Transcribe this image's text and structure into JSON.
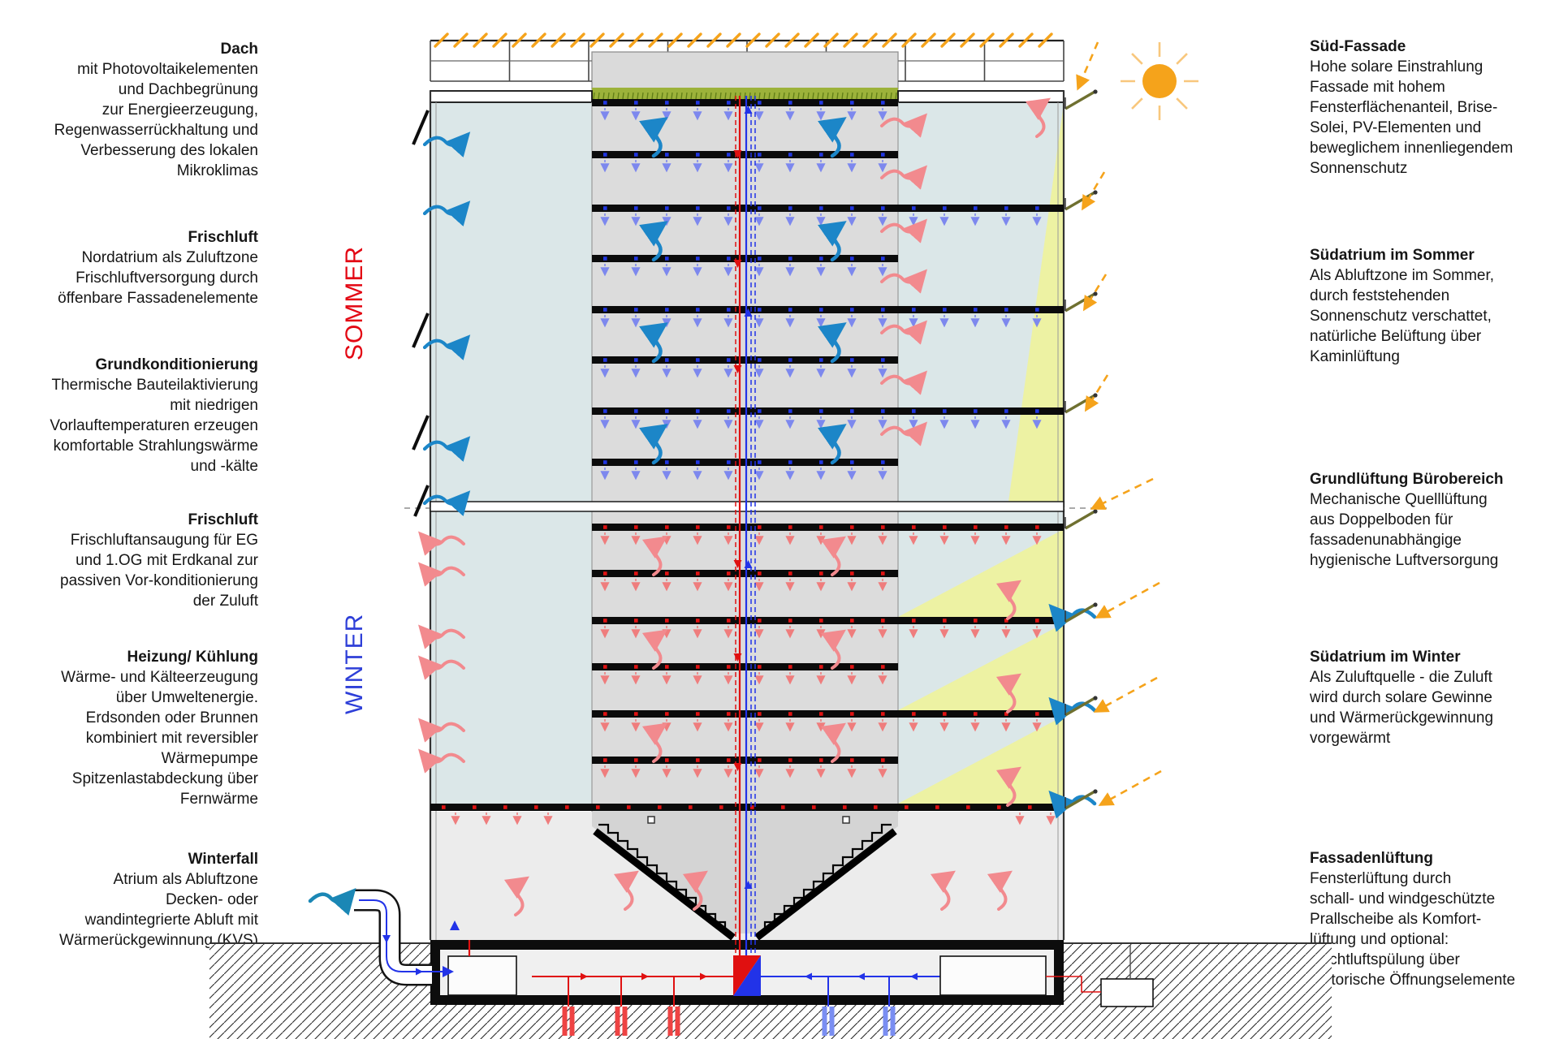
{
  "left_column": {
    "blocks": [
      {
        "title": "Dach",
        "lines": [
          "mit Photovoltaikelementen",
          "und Dachbegrünung",
          "zur Energieerzeugung,",
          "Regenwasserrückhaltung und",
          "Verbesserung des lokalen",
          "Mikroklimas"
        ]
      },
      {
        "title": "Frischluft",
        "lines": [
          "Nordatrium als Zuluftzone",
          "Frischluftversorgung durch",
          "öffenbare Fassadenelemente"
        ]
      },
      {
        "title": "Grundkonditionierung",
        "lines": [
          "Thermische Bauteilaktivierung",
          "mit niedrigen",
          "Vorlauftemperaturen erzeugen",
          "komfortable Strahlungswärme",
          "und -kälte"
        ]
      },
      {
        "title": "Frischluft",
        "lines": [
          "Frischluftansaugung für EG",
          "und 1.OG mit Erdkanal zur",
          "passiven Vor-konditionierung",
          "der Zuluft"
        ]
      },
      {
        "title": "Heizung/ Kühlung",
        "lines": [
          "Wärme- und Kälteerzeugung",
          "über Umweltenergie.",
          "Erdsonden oder Brunnen",
          "kombiniert mit reversibler",
          "Wärmepumpe",
          "Spitzenlastabdeckung über",
          "Fernwärme"
        ]
      },
      {
        "title": "Winterfall",
        "lines": [
          "Atrium als Abluftzone",
          "Decken- oder",
          "wandintegrierte Abluft mit",
          "Wärmerückgewinnung (KVS)"
        ]
      }
    ]
  },
  "right_column": {
    "blocks": [
      {
        "title": "Süd-Fassade",
        "lines": [
          "Hohe solare Einstrahlung",
          "Fassade mit hohem",
          "Fensterflächenanteil, Brise-",
          "Solei, PV-Elementen und",
          "beweglichem innenliegendem",
          "Sonnenschutz"
        ]
      },
      {
        "title": "Südatrium im Sommer",
        "lines": [
          "Als Abluftzone im Sommer,",
          "durch feststehenden",
          "Sonnenschutz verschattet,",
          "natürliche Belüftung über",
          "Kaminlüftung"
        ]
      },
      {
        "title": "Grundlüftung Bürobereich",
        "lines": [
          "Mechanische Quelllüftung",
          "aus Doppelboden für",
          "fassadenunabhängige",
          "hygienische Luftversorgung"
        ]
      },
      {
        "title": "Südatrium im Winter",
        "lines": [
          "Als Zuluftquelle - die Zuluft",
          "wird durch solare Gewinne",
          "und Wärmerückgewinnung",
          "vorgewärmt"
        ]
      },
      {
        "title": "Fassadenlüftung",
        "lines": [
          "Fensterlüftung durch",
          "schall- und windgeschützte",
          "Prallscheibe als Komfort-",
          "lüftung und optional:",
          "Nachtluftspülung über",
          "motorische Öffnungselemente"
        ]
      }
    ]
  },
  "season_labels": {
    "summer": "SOMMER",
    "winter": "WINTER"
  },
  "colors": {
    "summer_label": "#e30613",
    "winter_label": "#2e3fd8",
    "sun": "#f5a31b",
    "sun_ray": "#f8c77d",
    "cool_arrow": "#7d88ee",
    "cool_dot": "#2035e0",
    "warm_arrow": "#ef7d7d",
    "warm_dot": "#e01212",
    "flow_blue": "#1c86c8",
    "flow_pink": "#f28a8e",
    "intake_teal": "#1b87b5",
    "riser_red": "#e01010",
    "riser_blue": "#2233e8",
    "bore_red": "#ee4343",
    "bore_blue": "#7a8ef2",
    "atrium_fill": "#dbe7e8",
    "office_fill": "#dcdcdc",
    "funnel_fill": "#d4d4d4",
    "solar_fill": "#edf2a3",
    "grass_green": "#9cb23a",
    "ground_fill": "#ececec"
  }
}
